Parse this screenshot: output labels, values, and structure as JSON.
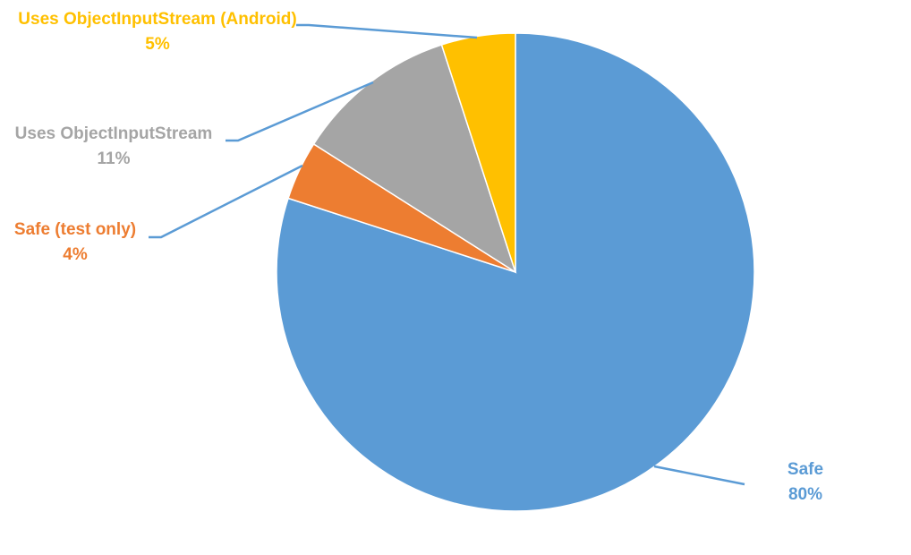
{
  "chart_data": {
    "type": "pie",
    "title": "",
    "legend": "none",
    "start_angle_deg": 0,
    "direction": "clockwise",
    "slices": [
      {
        "label": "Safe",
        "value": 80,
        "value_label": "80%",
        "color": "#5B9BD5"
      },
      {
        "label": "Safe (test only)",
        "value": 4,
        "value_label": "4%",
        "color": "#ED7D31"
      },
      {
        "label": "Uses ObjectInputStream",
        "value": 11,
        "value_label": "11%",
        "color": "#A5A5A5"
      },
      {
        "label": "Uses ObjectInputStream (Android)",
        "value": 5,
        "value_label": "5%",
        "color": "#FFC000"
      }
    ]
  }
}
